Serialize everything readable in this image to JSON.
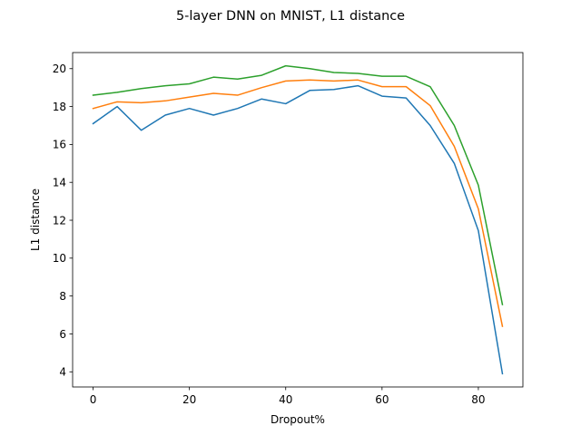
{
  "chart_data": {
    "type": "line",
    "title": "5-layer DNN on MNIST, L1 distance",
    "xlabel": "Dropout%",
    "ylabel": "L1 distance",
    "xlim": [
      -4.25,
      89.25
    ],
    "ylim": [
      3.2,
      20.85
    ],
    "xticks": [
      0,
      20,
      40,
      60,
      80
    ],
    "yticks": [
      4,
      6,
      8,
      10,
      12,
      14,
      16,
      18,
      20
    ],
    "grid": false,
    "legend": "none",
    "x": [
      0,
      5,
      10,
      15,
      20,
      25,
      30,
      35,
      40,
      45,
      50,
      55,
      60,
      65,
      70,
      75,
      80,
      85
    ],
    "series": [
      {
        "color": "#1f77b4",
        "values": [
          17.1,
          18.0,
          16.75,
          17.55,
          17.9,
          17.55,
          17.9,
          18.4,
          18.15,
          18.85,
          18.9,
          19.1,
          18.55,
          18.45,
          17.0,
          15.0,
          11.45,
          3.9
        ]
      },
      {
        "color": "#ff7f0e",
        "values": [
          17.9,
          18.25,
          18.2,
          18.3,
          18.5,
          18.7,
          18.6,
          19.0,
          19.35,
          19.4,
          19.35,
          19.4,
          19.05,
          19.05,
          18.05,
          15.9,
          12.6,
          6.4
        ]
      },
      {
        "color": "#2ca02c",
        "values": [
          18.6,
          18.75,
          18.95,
          19.1,
          19.2,
          19.55,
          19.45,
          19.65,
          20.15,
          20.0,
          19.8,
          19.75,
          19.6,
          19.6,
          19.05,
          17.0,
          13.85,
          7.55
        ]
      }
    ]
  }
}
